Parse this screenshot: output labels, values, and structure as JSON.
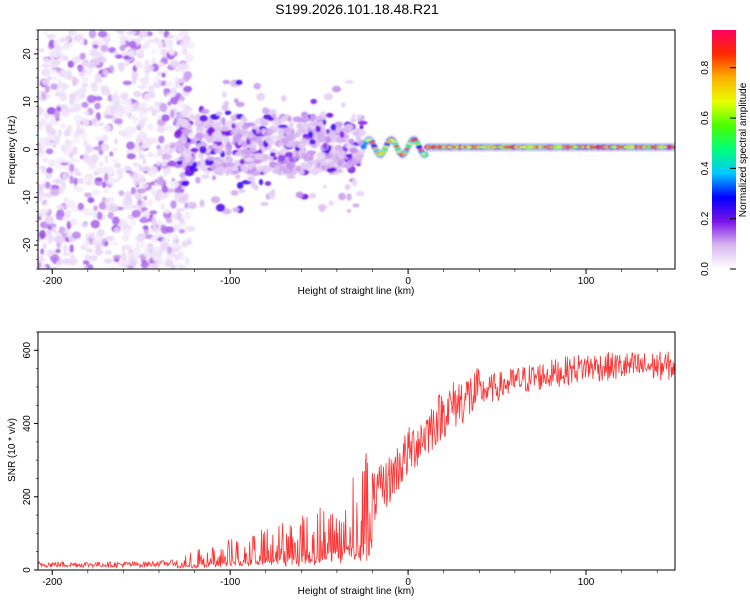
{
  "page": {
    "title": "S199.2026.101.18.48.R21"
  },
  "chart_data": [
    {
      "type": "heatmap",
      "title": "S199.2026.101.18.48.R21",
      "xlabel": "Height of straight line (km)",
      "ylabel": "Frequency (Hz)",
      "xlim": [
        -208,
        150
      ],
      "ylim": [
        -25,
        25
      ],
      "xticks": [
        -200,
        -100,
        0,
        100
      ],
      "yticks": [
        -20,
        -10,
        0,
        10,
        20
      ],
      "colorbar": {
        "label": "Normalized spectral amplitude",
        "range": [
          0,
          0.95
        ],
        "ticks": [
          0,
          0.2,
          0.4,
          0.6,
          0.8
        ],
        "stops": [
          "#ffffff",
          "#d8b8f0",
          "#7a12e8",
          "#0000ff",
          "#00c8ff",
          "#00ff7a",
          "#49ff00",
          "#e8ff00",
          "#ffb000",
          "#ff2a00",
          "#ff0060"
        ]
      },
      "description_points": {
        "noise_region_x": [
          -208,
          -130
        ],
        "scatter_region_x": [
          -130,
          -25
        ],
        "line_region_x": [
          -25,
          150
        ],
        "line_frequency_hz": 0.5
      },
      "segments": [
        {
          "x0": -208,
          "x1": -130,
          "kind": "noise",
          "amplitude": 0.15
        },
        {
          "x0": -130,
          "x1": -25,
          "kind": "scatter",
          "amplitude": 0.3
        },
        {
          "x0": -25,
          "x1": 150,
          "kind": "line",
          "amplitude": 0.9
        }
      ]
    },
    {
      "type": "line",
      "xlabel": "Height of straight line (km)",
      "ylabel": "SNR (10 * v/v)",
      "xlim": [
        -208,
        150
      ],
      "ylim": [
        0,
        650
      ],
      "xticks": [
        -200,
        -100,
        0,
        100
      ],
      "yticks": [
        0,
        200,
        400,
        600
      ],
      "color": "#ff3333",
      "series": [
        {
          "name": "SNR",
          "x": [
            -208,
            -180,
            -150,
            -130,
            -120,
            -110,
            -100,
            -90,
            -80,
            -70,
            -60,
            -50,
            -40,
            -30,
            -20,
            -10,
            0,
            10,
            20,
            30,
            40,
            50,
            60,
            70,
            80,
            90,
            100,
            110,
            120,
            130,
            140,
            150
          ],
          "y": [
            15,
            15,
            15,
            20,
            28,
            38,
            45,
            55,
            62,
            72,
            82,
            95,
            115,
            150,
            190,
            250,
            320,
            375,
            430,
            465,
            485,
            500,
            515,
            525,
            535,
            545,
            555,
            555,
            556,
            556,
            557,
            557
          ]
        }
      ]
    }
  ]
}
